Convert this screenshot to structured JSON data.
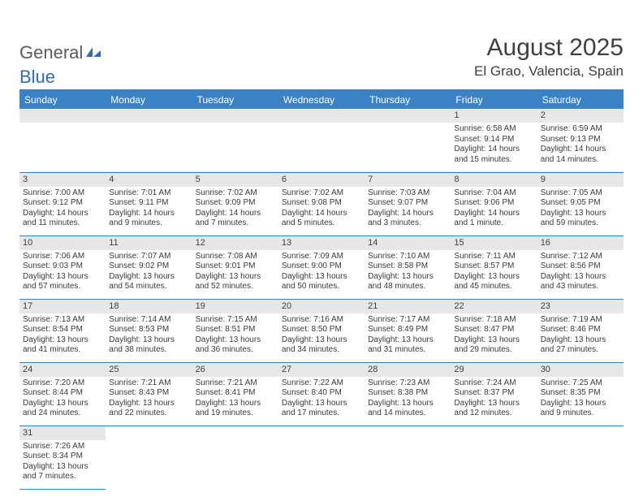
{
  "logo": {
    "text1": "General",
    "text2": "Blue"
  },
  "title": "August 2025",
  "location": "El Grao, Valencia, Spain",
  "colors": {
    "header_bg": "#3a82c4",
    "header_text": "#ffffff",
    "daystrip_bg": "#e7e7e7",
    "text": "#404040",
    "border": "#3a82c4"
  },
  "weekdays": [
    "Sunday",
    "Monday",
    "Tuesday",
    "Wednesday",
    "Thursday",
    "Friday",
    "Saturday"
  ],
  "cells": [
    [
      null,
      null,
      null,
      null,
      null,
      {
        "n": "1",
        "sr": "Sunrise: 6:58 AM",
        "ss": "Sunset: 9:14 PM",
        "dl": "Daylight: 14 hours and 15 minutes."
      },
      {
        "n": "2",
        "sr": "Sunrise: 6:59 AM",
        "ss": "Sunset: 9:13 PM",
        "dl": "Daylight: 14 hours and 14 minutes."
      }
    ],
    [
      {
        "n": "3",
        "sr": "Sunrise: 7:00 AM",
        "ss": "Sunset: 9:12 PM",
        "dl": "Daylight: 14 hours and 11 minutes."
      },
      {
        "n": "4",
        "sr": "Sunrise: 7:01 AM",
        "ss": "Sunset: 9:11 PM",
        "dl": "Daylight: 14 hours and 9 minutes."
      },
      {
        "n": "5",
        "sr": "Sunrise: 7:02 AM",
        "ss": "Sunset: 9:09 PM",
        "dl": "Daylight: 14 hours and 7 minutes."
      },
      {
        "n": "6",
        "sr": "Sunrise: 7:02 AM",
        "ss": "Sunset: 9:08 PM",
        "dl": "Daylight: 14 hours and 5 minutes."
      },
      {
        "n": "7",
        "sr": "Sunrise: 7:03 AM",
        "ss": "Sunset: 9:07 PM",
        "dl": "Daylight: 14 hours and 3 minutes."
      },
      {
        "n": "8",
        "sr": "Sunrise: 7:04 AM",
        "ss": "Sunset: 9:06 PM",
        "dl": "Daylight: 14 hours and 1 minute."
      },
      {
        "n": "9",
        "sr": "Sunrise: 7:05 AM",
        "ss": "Sunset: 9:05 PM",
        "dl": "Daylight: 13 hours and 59 minutes."
      }
    ],
    [
      {
        "n": "10",
        "sr": "Sunrise: 7:06 AM",
        "ss": "Sunset: 9:03 PM",
        "dl": "Daylight: 13 hours and 57 minutes."
      },
      {
        "n": "11",
        "sr": "Sunrise: 7:07 AM",
        "ss": "Sunset: 9:02 PM",
        "dl": "Daylight: 13 hours and 54 minutes."
      },
      {
        "n": "12",
        "sr": "Sunrise: 7:08 AM",
        "ss": "Sunset: 9:01 PM",
        "dl": "Daylight: 13 hours and 52 minutes."
      },
      {
        "n": "13",
        "sr": "Sunrise: 7:09 AM",
        "ss": "Sunset: 9:00 PM",
        "dl": "Daylight: 13 hours and 50 minutes."
      },
      {
        "n": "14",
        "sr": "Sunrise: 7:10 AM",
        "ss": "Sunset: 8:58 PM",
        "dl": "Daylight: 13 hours and 48 minutes."
      },
      {
        "n": "15",
        "sr": "Sunrise: 7:11 AM",
        "ss": "Sunset: 8:57 PM",
        "dl": "Daylight: 13 hours and 45 minutes."
      },
      {
        "n": "16",
        "sr": "Sunrise: 7:12 AM",
        "ss": "Sunset: 8:56 PM",
        "dl": "Daylight: 13 hours and 43 minutes."
      }
    ],
    [
      {
        "n": "17",
        "sr": "Sunrise: 7:13 AM",
        "ss": "Sunset: 8:54 PM",
        "dl": "Daylight: 13 hours and 41 minutes."
      },
      {
        "n": "18",
        "sr": "Sunrise: 7:14 AM",
        "ss": "Sunset: 8:53 PM",
        "dl": "Daylight: 13 hours and 38 minutes."
      },
      {
        "n": "19",
        "sr": "Sunrise: 7:15 AM",
        "ss": "Sunset: 8:51 PM",
        "dl": "Daylight: 13 hours and 36 minutes."
      },
      {
        "n": "20",
        "sr": "Sunrise: 7:16 AM",
        "ss": "Sunset: 8:50 PM",
        "dl": "Daylight: 13 hours and 34 minutes."
      },
      {
        "n": "21",
        "sr": "Sunrise: 7:17 AM",
        "ss": "Sunset: 8:49 PM",
        "dl": "Daylight: 13 hours and 31 minutes."
      },
      {
        "n": "22",
        "sr": "Sunrise: 7:18 AM",
        "ss": "Sunset: 8:47 PM",
        "dl": "Daylight: 13 hours and 29 minutes."
      },
      {
        "n": "23",
        "sr": "Sunrise: 7:19 AM",
        "ss": "Sunset: 8:46 PM",
        "dl": "Daylight: 13 hours and 27 minutes."
      }
    ],
    [
      {
        "n": "24",
        "sr": "Sunrise: 7:20 AM",
        "ss": "Sunset: 8:44 PM",
        "dl": "Daylight: 13 hours and 24 minutes."
      },
      {
        "n": "25",
        "sr": "Sunrise: 7:21 AM",
        "ss": "Sunset: 8:43 PM",
        "dl": "Daylight: 13 hours and 22 minutes."
      },
      {
        "n": "26",
        "sr": "Sunrise: 7:21 AM",
        "ss": "Sunset: 8:41 PM",
        "dl": "Daylight: 13 hours and 19 minutes."
      },
      {
        "n": "27",
        "sr": "Sunrise: 7:22 AM",
        "ss": "Sunset: 8:40 PM",
        "dl": "Daylight: 13 hours and 17 minutes."
      },
      {
        "n": "28",
        "sr": "Sunrise: 7:23 AM",
        "ss": "Sunset: 8:38 PM",
        "dl": "Daylight: 13 hours and 14 minutes."
      },
      {
        "n": "29",
        "sr": "Sunrise: 7:24 AM",
        "ss": "Sunset: 8:37 PM",
        "dl": "Daylight: 13 hours and 12 minutes."
      },
      {
        "n": "30",
        "sr": "Sunrise: 7:25 AM",
        "ss": "Sunset: 8:35 PM",
        "dl": "Daylight: 13 hours and 9 minutes."
      }
    ],
    [
      {
        "n": "31",
        "sr": "Sunrise: 7:26 AM",
        "ss": "Sunset: 8:34 PM",
        "dl": "Daylight: 13 hours and 7 minutes."
      },
      null,
      null,
      null,
      null,
      null,
      null
    ]
  ]
}
